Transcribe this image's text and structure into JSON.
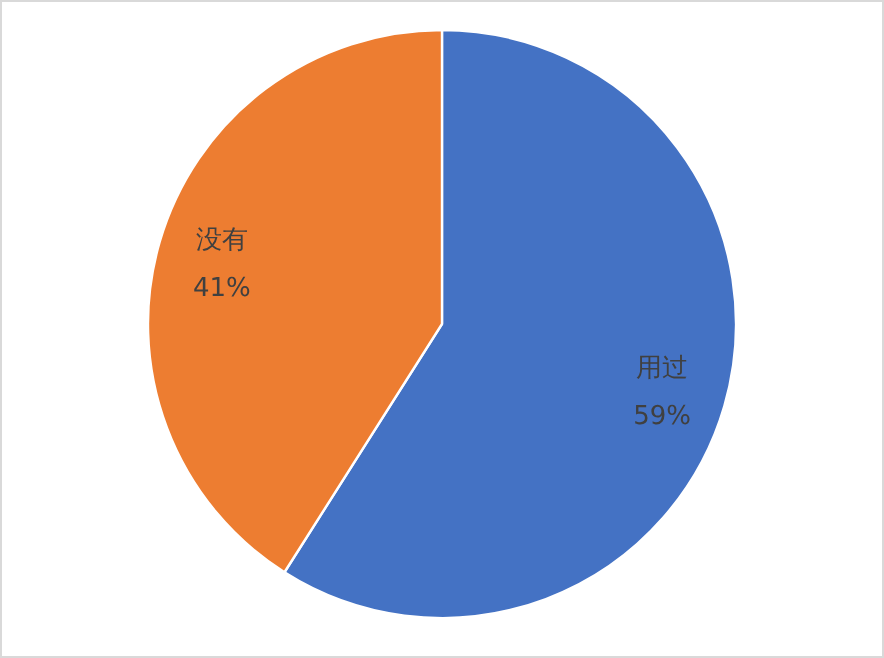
{
  "chart_data": {
    "type": "pie",
    "categories": [
      "用过",
      "没有"
    ],
    "values": [
      59,
      41
    ],
    "colors": [
      "#4472c4",
      "#ed7d31"
    ],
    "value_labels": [
      "59%",
      "41%"
    ]
  }
}
